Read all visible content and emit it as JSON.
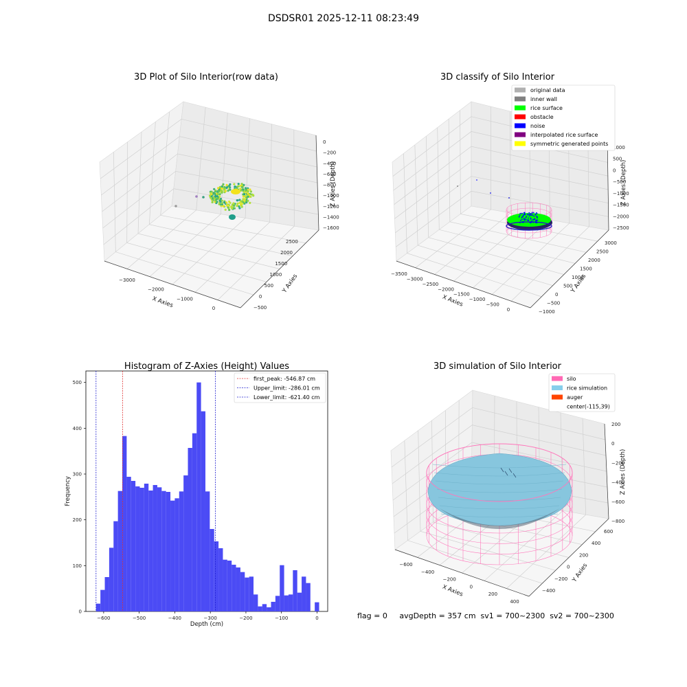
{
  "figure": {
    "suptitle": "DSDSR01 2025-12-11 08:23:49",
    "footer": "flag = 0     avgDepth = 357 cm  sv1 = 700~2300  sv2 = 700~2300"
  },
  "colors": {
    "hist_bar": "#4B4BF5",
    "first_peak_line": "#e03030",
    "limit_line": "#2020d0",
    "pane": "#f2f2f2",
    "silo_wire": "#ff77bb",
    "rice_sim": "#87c6de",
    "auger": "#ff4500",
    "rice_surface": "#00ff00",
    "noise": "#0000ff"
  },
  "plot1": {
    "title": "3D Plot of Silo Interior(row data)",
    "xlabel": "X Axies",
    "ylabel": "Y Axies",
    "zlabel": "Z Axies (Depth)",
    "xticks": [
      "−3000",
      "−2000",
      "−1000",
      "0"
    ],
    "yticks": [
      "−500",
      "0",
      "500",
      "1000",
      "1500",
      "2000",
      "2500"
    ],
    "zticks": [
      "0",
      "−200",
      "−400",
      "−600",
      "−800",
      "−1000",
      "−1200",
      "−1400",
      "−1600"
    ]
  },
  "plot2": {
    "title": "3D classify of Silo Interior",
    "xlabel": "X Axies",
    "ylabel": "Y Axies",
    "zlabel": "Z Axies (Depth)",
    "xticks": [
      "−3500",
      "−3000",
      "−2500",
      "−2000",
      "−1500",
      "−1000",
      "−500",
      "0"
    ],
    "yticks": [
      "−1000",
      "−500",
      "0",
      "500",
      "1000",
      "1500",
      "2000",
      "2500",
      "3000"
    ],
    "zticks": [
      "1000",
      "500",
      "0",
      "−500",
      "−1000",
      "−1500",
      "−2000",
      "−2500"
    ],
    "legend": [
      {
        "label": "original data",
        "color": "#b0b0b0"
      },
      {
        "label": "inner wall",
        "color": "#808080"
      },
      {
        "label": "rice surface",
        "color": "#00ff00"
      },
      {
        "label": "obstacle",
        "color": "#ff0000"
      },
      {
        "label": "noise",
        "color": "#0000ff"
      },
      {
        "label": "interpolated rice surface",
        "color": "#800080"
      },
      {
        "label": "symmetric generated points",
        "color": "#ffff00"
      }
    ]
  },
  "plot4": {
    "title": "3D simulation of Silo Interior",
    "xlabel": "X Axies",
    "ylabel": "Y Axies",
    "zlabel": "Z Axies (Depth)",
    "xticks": [
      "−600",
      "−400",
      "−200",
      "0",
      "200",
      "400"
    ],
    "yticks": [
      "−400",
      "−200",
      "0",
      "200",
      "400",
      "600"
    ],
    "zticks": [
      "200",
      "0",
      "−200",
      "−400",
      "−600",
      "−800"
    ],
    "legend": [
      {
        "label": "silo",
        "color": "#ff69b4"
      },
      {
        "label": "rice simulation",
        "color": "#87ceeb"
      },
      {
        "label": "auger",
        "color": "#ff4500"
      },
      {
        "label": "center(-115,39)",
        "color": ""
      }
    ]
  },
  "chart_data": {
    "type": "bar",
    "title": "Histogram of Z-Axies (Height) Values",
    "xlabel": "Depth (cm)",
    "ylabel": "Frequency",
    "xlim": [
      -650,
      30
    ],
    "ylim": [
      0,
      525
    ],
    "xticks": [
      -600,
      -500,
      -400,
      -300,
      -200,
      -100,
      0
    ],
    "yticks": [
      0,
      100,
      200,
      300,
      400,
      500
    ],
    "bin_width": 12.3,
    "bins": [
      {
        "x": -621.4,
        "v": 17
      },
      {
        "x": -609.1,
        "v": 47
      },
      {
        "x": -596.8,
        "v": 75
      },
      {
        "x": -584.5,
        "v": 139
      },
      {
        "x": -572.2,
        "v": 197
      },
      {
        "x": -559.9,
        "v": 263
      },
      {
        "x": -547.6,
        "v": 383
      },
      {
        "x": -535.3,
        "v": 294
      },
      {
        "x": -523.0,
        "v": 285
      },
      {
        "x": -510.7,
        "v": 273
      },
      {
        "x": -498.4,
        "v": 270
      },
      {
        "x": -486.1,
        "v": 279
      },
      {
        "x": -473.8,
        "v": 264
      },
      {
        "x": -461.5,
        "v": 276
      },
      {
        "x": -449.2,
        "v": 271
      },
      {
        "x": -436.9,
        "v": 263
      },
      {
        "x": -424.6,
        "v": 261
      },
      {
        "x": -412.3,
        "v": 242
      },
      {
        "x": -400.0,
        "v": 247
      },
      {
        "x": -387.7,
        "v": 262
      },
      {
        "x": -375.4,
        "v": 297
      },
      {
        "x": -363.1,
        "v": 357
      },
      {
        "x": -350.8,
        "v": 389
      },
      {
        "x": -338.5,
        "v": 500
      },
      {
        "x": -326.2,
        "v": 437
      },
      {
        "x": -313.9,
        "v": 262
      },
      {
        "x": -301.6,
        "v": 180
      },
      {
        "x": -289.3,
        "v": 153
      },
      {
        "x": -277.0,
        "v": 138
      },
      {
        "x": -264.7,
        "v": 113
      },
      {
        "x": -252.4,
        "v": 111
      },
      {
        "x": -240.1,
        "v": 102
      },
      {
        "x": -227.8,
        "v": 96
      },
      {
        "x": -215.5,
        "v": 86
      },
      {
        "x": -203.2,
        "v": 74
      },
      {
        "x": -190.9,
        "v": 76
      },
      {
        "x": -178.6,
        "v": 37
      },
      {
        "x": -166.3,
        "v": 11
      },
      {
        "x": -154.0,
        "v": 16
      },
      {
        "x": -141.7,
        "v": 9
      },
      {
        "x": -129.4,
        "v": 21
      },
      {
        "x": -117.1,
        "v": 34
      },
      {
        "x": -104.8,
        "v": 101
      },
      {
        "x": -92.5,
        "v": 35
      },
      {
        "x": -80.2,
        "v": 37
      },
      {
        "x": -67.9,
        "v": 90
      },
      {
        "x": -55.6,
        "v": 41
      },
      {
        "x": -43.3,
        "v": 76
      },
      {
        "x": -31.0,
        "v": 62
      },
      {
        "x": -6.4,
        "v": 20
      }
    ],
    "vlines": [
      {
        "name": "first_peak: -546.87 cm",
        "x": -546.87,
        "color": "#e03030"
      },
      {
        "name": "Upper_limit: -286.01 cm",
        "x": -286.01,
        "color": "#2020d0"
      },
      {
        "name": "Lower_limit: -621.40 cm",
        "x": -621.4,
        "color": "#2020d0"
      }
    ],
    "legend_loc": "upper right"
  }
}
